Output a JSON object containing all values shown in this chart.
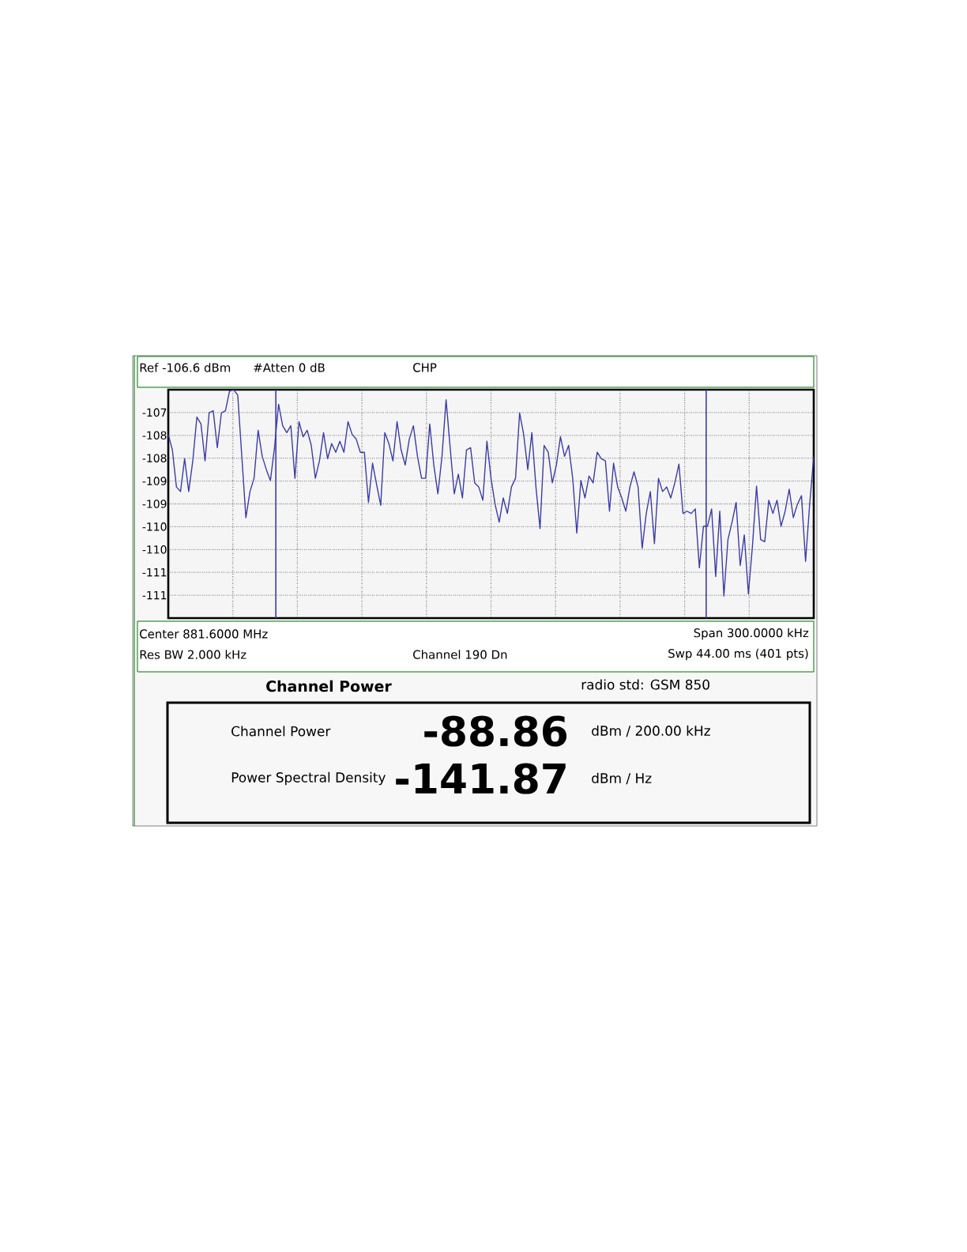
{
  "chart_data": {
    "type": "line",
    "title": "Channel Power",
    "subtitle": "radio std: GSM 850",
    "annotations": [
      "Ref -106.6 dBm",
      "#Atten 0 dB",
      "CHP",
      "Center 881.6000 MHz",
      "Span 300.0000 kHz",
      "Res BW 2.000 kHz",
      "Channel 190 Dn",
      "Swp 44.00 ms (401 pts)",
      "Channel Power",
      "-88.86",
      "dBm / 200.00 kHz",
      "Power Spectral Density",
      "-141.87",
      "dBm / Hz"
    ],
    "categories": [
      null,
      null,
      null,
      null,
      null,
      null,
      null,
      null,
      null,
      null,
      null,
      null,
      null,
      null,
      null,
      null,
      null,
      null,
      null,
      null,
      null,
      null,
      null,
      null,
      null,
      null,
      null,
      null,
      null,
      null,
      null,
      null,
      null,
      null,
      null,
      null,
      null,
      null,
      null,
      null,
      null,
      null,
      null,
      null,
      null,
      null,
      null,
      null,
      null,
      null,
      null,
      null,
      null,
      null,
      null,
      null,
      null,
      null,
      null,
      null,
      null,
      null,
      null,
      null,
      null,
      null,
      null,
      null,
      null,
      null,
      null,
      null,
      null,
      null,
      null,
      null,
      null,
      null,
      null,
      null,
      null,
      null,
      null,
      null,
      null,
      null,
      null,
      null,
      null,
      null,
      null,
      null,
      null,
      null,
      null,
      null,
      null,
      null,
      null,
      null,
      null,
      null,
      null,
      null,
      null,
      null,
      null,
      null,
      null,
      null,
      null,
      null,
      null,
      null,
      null,
      null,
      null,
      null,
      null,
      null,
      null,
      null,
      null,
      null,
      null,
      null,
      null,
      null,
      null,
      null,
      null,
      null,
      null,
      null,
      null,
      null,
      null,
      null,
      null,
      null,
      null,
      null,
      null,
      null,
      null,
      null,
      null,
      null,
      null,
      null,
      null,
      null,
      null,
      null,
      null,
      null,
      null,
      null,
      null
    ],
    "series": [
      {
        "color": "#3c3ca8",
        "values": [
          -107.58,
          -107.92,
          -108.73,
          -108.83,
          -108.11,
          -108.83,
          -108.16,
          -107.2,
          -107.35,
          -108.16,
          -107.11,
          -107.06,
          -107.87,
          -107.11,
          -107.06,
          -106.63,
          -106.6,
          -106.72,
          -108.06,
          -109.4,
          -108.83,
          -108.54,
          -107.49,
          -108.06,
          -108.35,
          -108.59,
          -107.87,
          -106.92,
          -107.39,
          -107.54,
          -107.39,
          -108.54,
          -107.3,
          -107.63,
          -107.49,
          -107.82,
          -108.54,
          -108.16,
          -107.54,
          -108.11,
          -107.78,
          -107.97,
          -107.73,
          -107.97,
          -107.3,
          -107.58,
          -107.68,
          -107.97,
          -107.97,
          -109.07,
          -108.21,
          -108.68,
          -109.13,
          -107.54,
          -107.78,
          -108.16,
          -107.3,
          -107.92,
          -108.25,
          -107.68,
          -107.39,
          -108.06,
          -108.54,
          -108.54,
          -107.35,
          -108.25,
          -108.88,
          -108.06,
          -106.82,
          -107.87,
          -108.88,
          -108.45,
          -108.97,
          -107.92,
          -107.87,
          -108.64,
          -108.73,
          -109.02,
          -107.73,
          -108.54,
          -109.11,
          -109.5,
          -108.97,
          -109.31,
          -108.73,
          -108.54,
          -107.11,
          -107.58,
          -108.35,
          -107.54,
          -108.73,
          -109.64,
          -107.82,
          -107.97,
          -108.64,
          -108.25,
          -107.63,
          -108.06,
          -107.82,
          -108.54,
          -109.74,
          -108.59,
          -108.97,
          -108.49,
          -108.64,
          -107.97,
          -108.11,
          -108.16,
          -109.26,
          -108.21,
          -108.73,
          -108.97,
          -109.26,
          -108.73,
          -108.4,
          -108.73,
          -110.07,
          -109.31,
          -108.83,
          -109.97,
          -108.54,
          -108.83,
          -108.73,
          -108.97,
          -108.64,
          -108.23,
          -109.31,
          -109.26,
          -109.31,
          -109.21,
          -110.5,
          -109.59,
          -109.59,
          -109.21,
          -110.69,
          -109.26,
          -111.12,
          -109.88,
          -109.5,
          -109.07,
          -110.45,
          -109.78,
          -111.07,
          -110.02,
          -108.71,
          -109.88,
          -109.93,
          -109.02,
          -109.31,
          -109.02,
          -109.59,
          -109.26,
          -108.78,
          -109.4,
          -109.11,
          -108.92,
          -110.36,
          -109.11,
          -108.06
        ]
      }
    ],
    "ylim": [
      -111.6,
      -106.6
    ],
    "yticks": [
      {
        "value": -107.1,
        "label": "-107"
      },
      {
        "value": -107.6,
        "label": "-108"
      },
      {
        "value": -108.1,
        "label": "-108"
      },
      {
        "value": -108.6,
        "label": "-109"
      },
      {
        "value": -109.1,
        "label": "-109"
      },
      {
        "value": -109.6,
        "label": "-110"
      },
      {
        "value": -110.1,
        "label": "-110"
      },
      {
        "value": -110.6,
        "label": "-111"
      },
      {
        "value": -111.1,
        "label": "-111"
      }
    ],
    "grid": true,
    "tick_labels": "y",
    "marker": "none",
    "line_style": "solid"
  }
}
